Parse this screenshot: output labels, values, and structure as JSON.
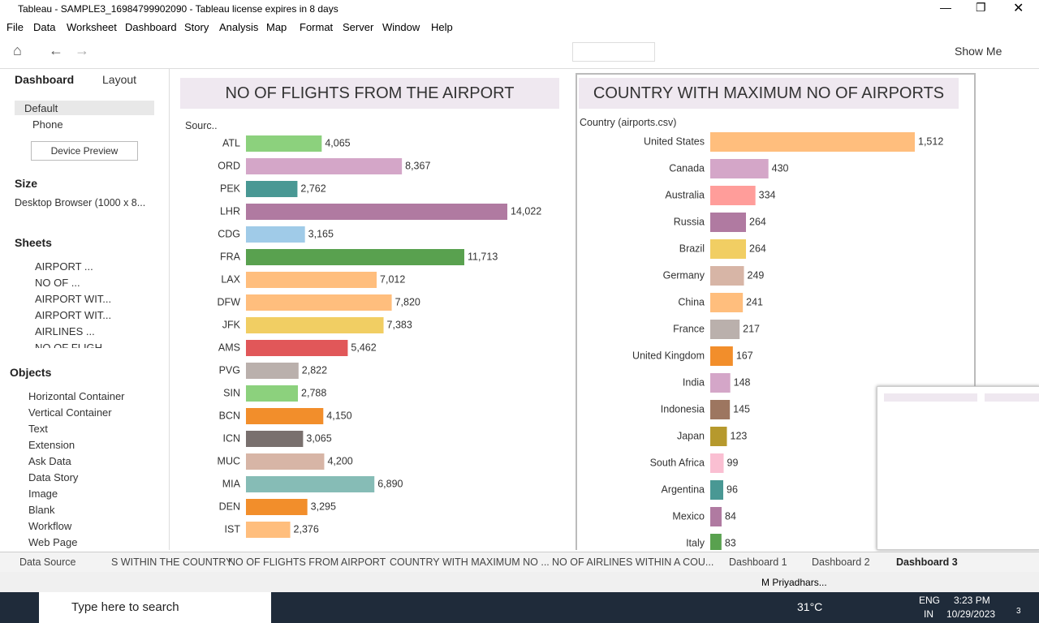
{
  "window": {
    "title": "Tableau - SAMPLE3_16984799902090 - Tableau license expires in 8 days"
  },
  "menu": [
    "File",
    "Data",
    "Worksheet",
    "Dashboard",
    "Story",
    "Analysis",
    "Map",
    "Format",
    "Server",
    "Window",
    "Help"
  ],
  "toolbar": {
    "show_me": "Show Me"
  },
  "side_panel": {
    "tabs": [
      "Dashboard",
      "Layout"
    ],
    "devices": [
      "Default",
      "Phone"
    ],
    "device_preview": "Device Preview",
    "size_heading": "Size",
    "size_value": "Desktop Browser (1000 x 8...",
    "sheets_heading": "Sheets",
    "sheets": [
      "AIRPORT ...",
      "NO OF ...",
      "AIRPORT WIT...",
      "AIRPORT WIT...",
      "AIRLINES ...",
      "NO OF FLIGH"
    ],
    "objects_heading": "Objects",
    "objects": [
      "Horizontal Container",
      "Vertical Container",
      "Text",
      "Extension",
      "Ask Data",
      "Data Story",
      "Image",
      "Blank",
      "Workflow",
      "Web Page"
    ]
  },
  "chart_data": [
    {
      "type": "bar",
      "title": "NO OF FLIGHTS FROM THE AIRPORT",
      "y_label": "Sourc..",
      "categories": [
        "ATL",
        "ORD",
        "PEK",
        "LHR",
        "CDG",
        "FRA",
        "LAX",
        "DFW",
        "JFK",
        "AMS",
        "PVG",
        "SIN",
        "BCN",
        "ICN",
        "MUC",
        "MIA",
        "DEN",
        "IST"
      ],
      "values": [
        4065,
        8367,
        2762,
        14022,
        3165,
        11713,
        7012,
        7820,
        7383,
        5462,
        2822,
        2788,
        4150,
        3065,
        4200,
        6890,
        3295,
        2376
      ],
      "value_labels": [
        "4,065",
        "8,367",
        "2,762",
        "14,022",
        "3,165",
        "11,713",
        "7,012",
        "7,820",
        "7,383",
        "5,462",
        "2,822",
        "2,788",
        "4,150",
        "3,065",
        "4,200",
        "6,890",
        "3,295",
        "2,376"
      ],
      "colors": [
        "#8cd17d",
        "#d4a6c8",
        "#499894",
        "#b07aa1",
        "#a0cbe8",
        "#59a14f",
        "#ffbe7d",
        "#ffbe7d",
        "#f1ce63",
        "#e15759",
        "#bab0ac",
        "#8cd17d",
        "#f28e2b",
        "#79706e",
        "#d7b5a6",
        "#86bcb6",
        "#f28e2b",
        "#ffbe7d"
      ]
    },
    {
      "type": "bar",
      "title": "COUNTRY WITH MAXIMUM NO OF AIRPORTS",
      "y_label": "Country (airports.csv)",
      "categories": [
        "United States",
        "Canada",
        "Australia",
        "Russia",
        "Brazil",
        "Germany",
        "China",
        "France",
        "United Kingdom",
        "India",
        "Indonesia",
        "Japan",
        "South Africa",
        "Argentina",
        "Mexico",
        "Italy"
      ],
      "values": [
        1512,
        430,
        334,
        264,
        264,
        249,
        241,
        217,
        167,
        148,
        145,
        123,
        99,
        96,
        84,
        83
      ],
      "value_labels": [
        "1,512",
        "430",
        "334",
        "264",
        "264",
        "249",
        "241",
        "217",
        "167",
        "148",
        "145",
        "123",
        "99",
        "96",
        "84",
        "83"
      ],
      "colors": [
        "#ffbe7d",
        "#d4a6c8",
        "#ff9d9a",
        "#b07aa1",
        "#f1ce63",
        "#d7b5a6",
        "#ffbe7d",
        "#bab0ac",
        "#f28e2b",
        "#d4a6c8",
        "#9d7660",
        "#b6992d",
        "#fabfd2",
        "#499894",
        "#b07aa1",
        "#59a14f"
      ]
    }
  ],
  "sheet_tabs": [
    "Data Source",
    "S WITHIN THE COUNTRY",
    "NO OF FLIGHTS FROM AIRPORT",
    "COUNTRY WITH MAXIMUM NO ...",
    "NO OF AIRLINES WITHIN A COU...",
    "Dashboard 1",
    "Dashboard 2",
    "Dashboard 3"
  ],
  "status": {
    "user": "M Priyadhars..."
  },
  "taskbar": {
    "search": "Type here to search",
    "weather": "31°C",
    "lang": "ENG",
    "region": "IN",
    "time": "3:23 PM",
    "date": "10/29/2023",
    "notifications": "3"
  }
}
